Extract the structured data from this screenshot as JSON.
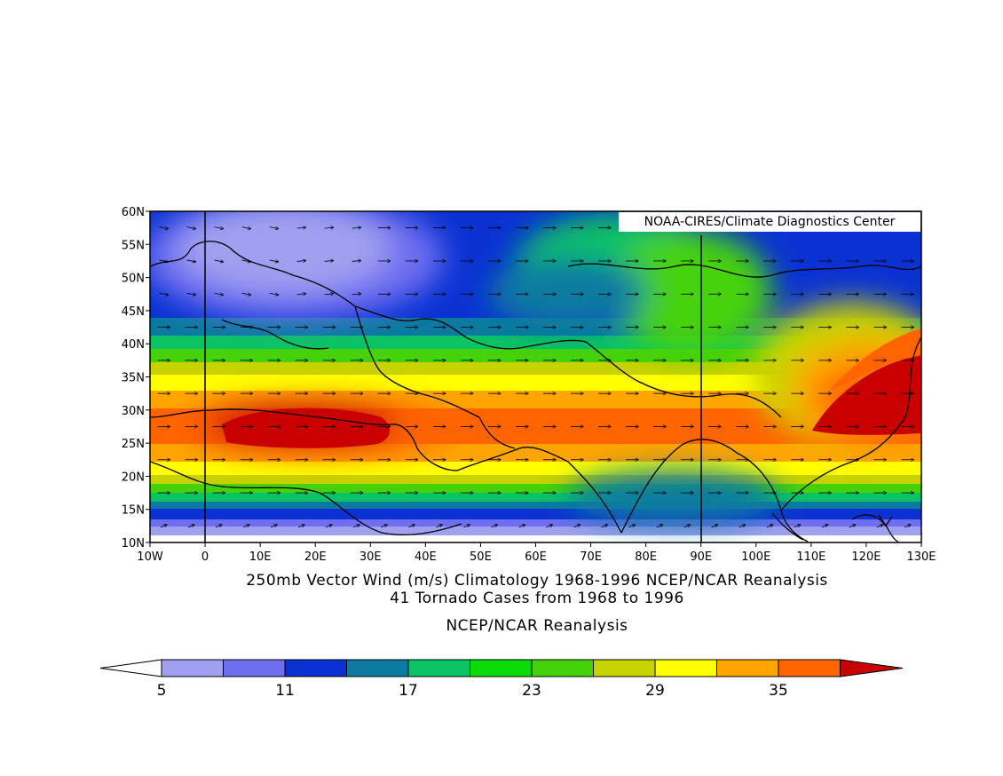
{
  "map": {
    "credit": "NOAA-CIRES/Climate Diagnostics Center",
    "lon_ticks": [
      "10W",
      "0",
      "10E",
      "20E",
      "30E",
      "40E",
      "50E",
      "60E",
      "70E",
      "80E",
      "90E",
      "100E",
      "110E",
      "120E",
      "130E"
    ],
    "lat_ticks": [
      "60N",
      "55N",
      "50N",
      "45N",
      "40N",
      "35N",
      "30N",
      "25N",
      "20N",
      "15N",
      "10N"
    ],
    "lon_range": [
      -10,
      130
    ],
    "lat_range": [
      10,
      60
    ],
    "reference_meridians": [
      0,
      90
    ],
    "field": "250mb vector wind speed (m/s), shaded; wind vectors overlaid; continental outlines",
    "jet_core": "red maxima near 20E 25-30N and 120-130E 28-35N"
  },
  "captions": {
    "line1": "250mb Vector Wind (m/s) Climatology 1968-1996 NCEP/NCAR Reanalysis",
    "line2": "41 Tornado Cases from 1968 to 1996",
    "line3": "NCEP/NCAR Reanalysis"
  },
  "colorbar": {
    "labels": [
      "5",
      "11",
      "17",
      "23",
      "29",
      "35"
    ],
    "levels": [
      5,
      8,
      11,
      14,
      17,
      20,
      23,
      26,
      29,
      32,
      35,
      38
    ],
    "colors": [
      "#ffffff",
      "#a0a0f0",
      "#6e6ef0",
      "#0a32d2",
      "#0a7aa0",
      "#0ac364",
      "#0adc0a",
      "#46d20a",
      "#c8d200",
      "#ffff00",
      "#ffa500",
      "#ff6400",
      "#c80000"
    ]
  }
}
